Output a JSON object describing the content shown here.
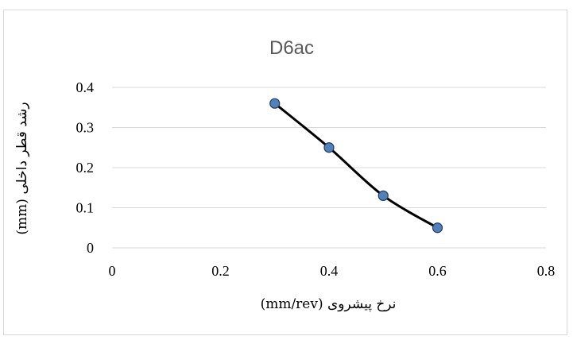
{
  "chart_data": {
    "type": "scatter",
    "title": "D6ac",
    "xlabel": "نرخ پیشروی (mm/rev)",
    "ylabel": "رشد قطر داخلی (mm)",
    "xlim": [
      0,
      0.8
    ],
    "ylim": [
      0,
      0.4
    ],
    "x_ticks": [
      "0",
      "0.2",
      "0.4",
      "0.6",
      "0.8"
    ],
    "y_ticks": [
      "0",
      "0.1",
      "0.2",
      "0.3",
      "0.4"
    ],
    "grid": "horizontal",
    "smoothed_line": true,
    "series": [
      {
        "x": [
          0.3,
          0.4,
          0.5,
          0.6
        ],
        "y": [
          0.36,
          0.25,
          0.13,
          0.05
        ]
      }
    ],
    "colors": {
      "marker_fill": "#4f81bd",
      "marker_stroke": "#1f3a5f",
      "line": "#000000",
      "grid": "#d9d9d9",
      "title": "#595959"
    }
  }
}
